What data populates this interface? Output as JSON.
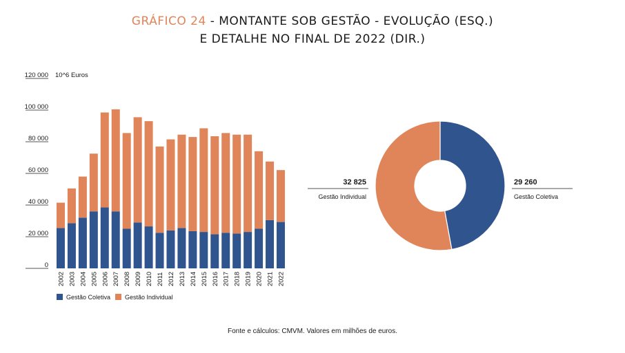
{
  "title": {
    "line1_accent": "GRÁFICO 24",
    "line1_rest": " - MONTANTE SOB GESTÃO - EVOLUÇÃO (ESQ.)",
    "line2": "E DETALHE NO FINAL DE 2022 (DIR.)"
  },
  "source": "Fonte e cálculos: CMVM. Valores em milhões de euros.",
  "colors": {
    "coletiva": "#2F548E",
    "individual": "#E0845A",
    "accent": "#E0845A"
  },
  "chart_data": [
    {
      "type": "bar",
      "stacked": true,
      "unit_label": "10^6 Euros",
      "ylim": [
        0,
        120000
      ],
      "y_ticks": [
        "0",
        "20 000",
        "40 000",
        "60 000",
        "80 000",
        "100 000",
        "120 000"
      ],
      "y_tick_values": [
        0,
        20000,
        40000,
        60000,
        80000,
        100000,
        120000
      ],
      "categories": [
        "2002",
        "2003",
        "2004",
        "2005",
        "2006",
        "2007",
        "2008",
        "2009",
        "2010",
        "2011",
        "2012",
        "2013",
        "2014",
        "2015",
        "2016",
        "2017",
        "2018",
        "2019",
        "2020",
        "2021",
        "2022"
      ],
      "series": [
        {
          "name": "Gestão Coletiva",
          "values": [
            25500,
            28500,
            32000,
            36000,
            38500,
            36000,
            25000,
            29000,
            26500,
            22500,
            24000,
            25500,
            23500,
            23000,
            21500,
            22500,
            22000,
            23000,
            25000,
            30500,
            29300
          ]
        },
        {
          "name": "Gestão Individual",
          "values": [
            16000,
            22000,
            26000,
            36500,
            60000,
            64500,
            60500,
            66500,
            66500,
            54500,
            57500,
            59000,
            59500,
            65500,
            62000,
            63000,
            62500,
            61500,
            49000,
            37000,
            32800
          ]
        }
      ],
      "legend": "bottom"
    },
    {
      "type": "pie",
      "donut": true,
      "slices": [
        {
          "name": "Gestão Coletiva",
          "value": 29260,
          "label": "29 260"
        },
        {
          "name": "Gestão Individual",
          "value": 32825,
          "label": "32 825"
        }
      ]
    }
  ]
}
